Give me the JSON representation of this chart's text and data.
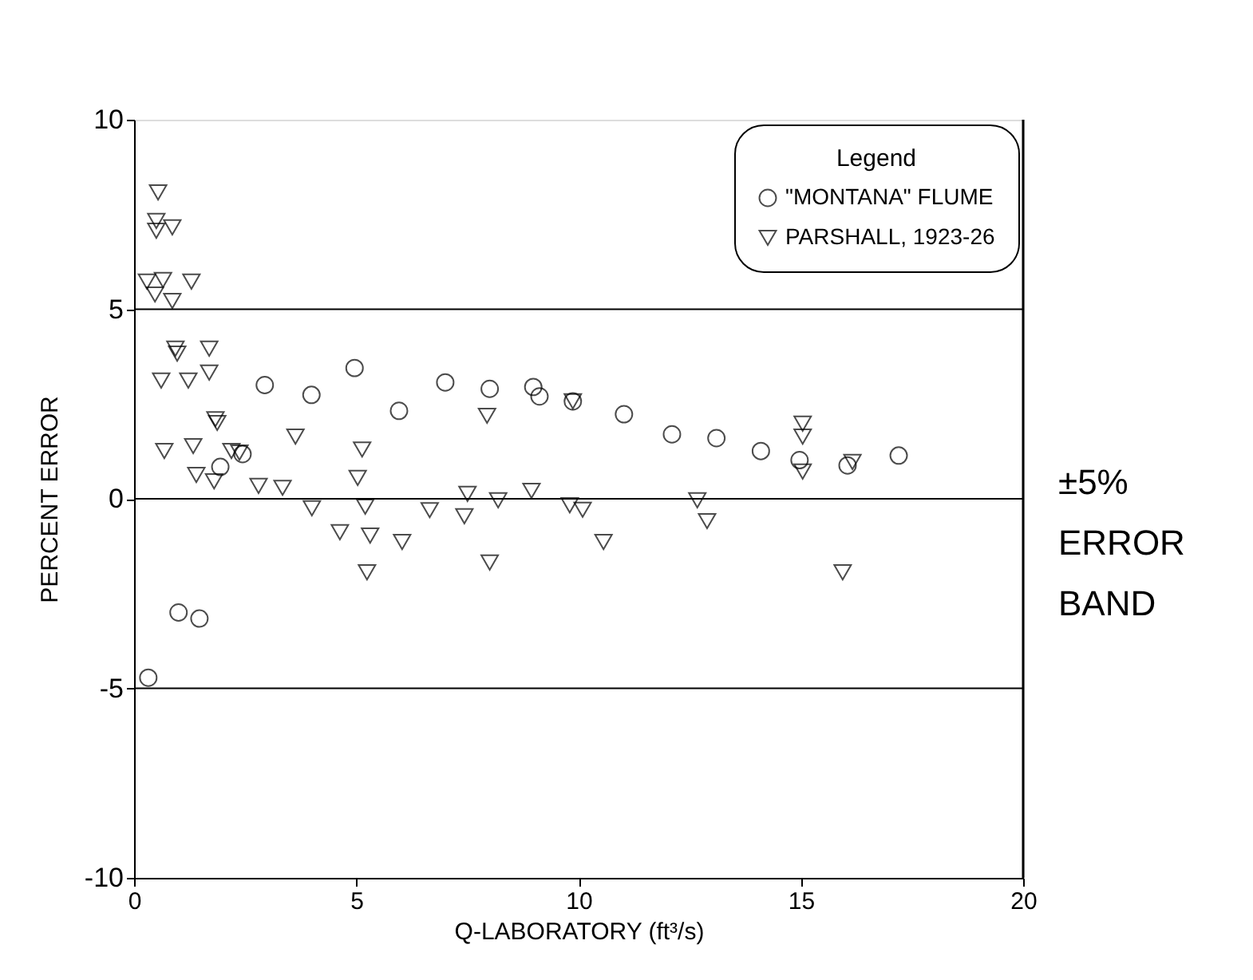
{
  "chart_data": {
    "type": "scatter",
    "xlabel": "Q-LABORATORY (ft³/s)",
    "ylabel": "PERCENT ERROR",
    "legend_title": "Legend",
    "legend": "top right",
    "grid": false,
    "xlim": [
      0,
      20
    ],
    "xticks": [
      0,
      5,
      10,
      15,
      20
    ],
    "ylim": [
      -10,
      10
    ],
    "yticks": [
      -10,
      -5,
      0,
      5,
      10
    ],
    "ref_lines": [
      {
        "axis": "y",
        "value": 5,
        "label": null,
        "color": "#000000"
      },
      {
        "axis": "y",
        "value": 0,
        "label": null,
        "color": "#000000"
      },
      {
        "axis": "y",
        "value": -5,
        "label": null,
        "color": "#000000"
      },
      {
        "axis": "x",
        "value": 20,
        "label": null,
        "color": "#000000"
      }
    ],
    "annotations": [
      "±5% ERROR BAND"
    ],
    "series": [
      {
        "name": "\"MONTANA\" FLUME",
        "color": "#000000",
        "marker": "circle",
        "x": [
          0.32,
          1.0,
          1.47,
          1.94,
          2.44,
          2.94,
          3.99,
          4.96,
          5.96,
          7.0,
          8.0,
          8.98,
          9.12,
          9.87,
          11.02,
          12.1,
          13.1,
          14.1,
          14.97,
          16.05,
          17.2
        ],
        "values": [
          -4.72,
          -3.0,
          -3.16,
          0.84,
          1.18,
          3.0,
          2.74,
          3.45,
          2.32,
          3.07,
          2.9,
          2.95,
          2.7,
          2.57,
          2.23,
          1.7,
          1.6,
          1.26,
          1.02,
          0.88,
          1.14
        ]
      },
      {
        "name": "PARSHALL, 1923-26",
        "color": "#000000",
        "marker": "triangle",
        "x": [
          0.54,
          0.5,
          0.5,
          0.86,
          0.29,
          0.65,
          1.29,
          0.47,
          0.86,
          0.93,
          0.97,
          1.69,
          1.69,
          0.61,
          1.22,
          1.83,
          1.87,
          0.68,
          1.33,
          2.19,
          2.37,
          1.4,
          1.8,
          3.63,
          5.13,
          5.03,
          2.8,
          3.34,
          4.0,
          5.2,
          4.63,
          5.31,
          6.03,
          5.24,
          6.65,
          7.5,
          7.43,
          8.19,
          8.94,
          7.94,
          8.0,
          9.87,
          9.8,
          10.09,
          10.56,
          12.67,
          12.89,
          15.04,
          15.04,
          15.04,
          16.16,
          15.94
        ],
        "values": [
          8.08,
          7.33,
          7.07,
          7.16,
          5.73,
          5.77,
          5.73,
          5.39,
          5.22,
          3.96,
          3.83,
          3.96,
          3.33,
          3.12,
          3.12,
          2.1,
          2.0,
          1.26,
          1.39,
          1.26,
          1.22,
          0.63,
          0.46,
          1.64,
          1.3,
          0.55,
          0.34,
          0.29,
          -0.25,
          -0.21,
          -0.88,
          -0.97,
          -1.14,
          -1.94,
          -0.3,
          0.13,
          -0.46,
          -0.04,
          0.21,
          2.19,
          -1.68,
          2.57,
          -0.17,
          -0.29,
          -1.14,
          -0.04,
          -0.59,
          1.98,
          1.64,
          0.72,
          0.97,
          -1.94
        ]
      }
    ]
  }
}
